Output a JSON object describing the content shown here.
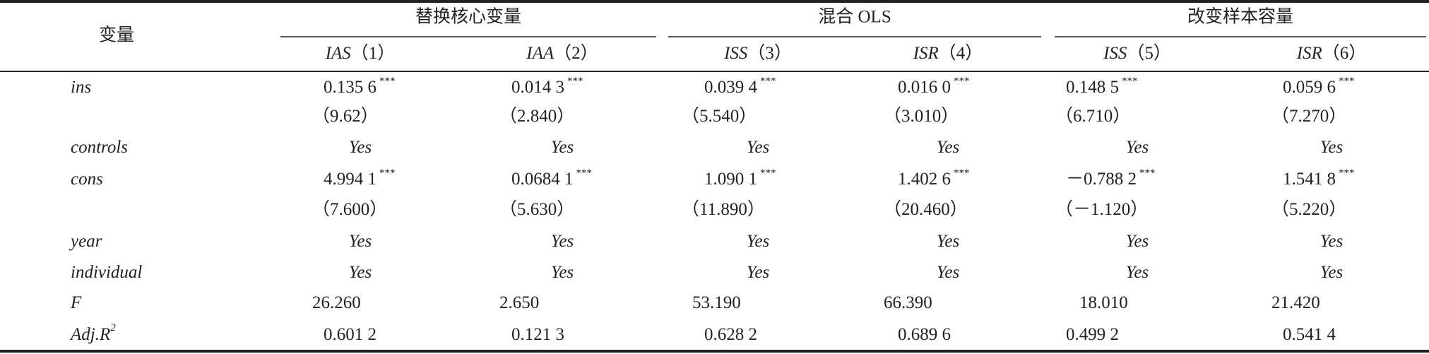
{
  "header": {
    "row_label": "变量",
    "groups": [
      "替换核心变量",
      "混合 OLS",
      "改变样本容量"
    ],
    "columns": [
      {
        "var": "IAS",
        "num": "（1）"
      },
      {
        "var": "IAA",
        "num": "（2）"
      },
      {
        "var": "ISS",
        "num": "（3）"
      },
      {
        "var": "ISR",
        "num": "（4）"
      },
      {
        "var": "ISS",
        "num": "（5）"
      },
      {
        "var": "ISR",
        "num": "（6）"
      }
    ]
  },
  "rows": [
    {
      "label": {
        "text": "ins"
      },
      "cells": [
        {
          "text": "0.135 6",
          "stars": "***"
        },
        {
          "text": "0.014 3",
          "stars": "***"
        },
        {
          "text": "0.039 4",
          "stars": "***"
        },
        {
          "text": "0.016 0",
          "stars": "***"
        },
        {
          "text": "0.148 5",
          "stars": "***"
        },
        {
          "text": "0.059 6",
          "stars": "***"
        }
      ]
    },
    {
      "cells": [
        {
          "text": "（9.62）"
        },
        {
          "text": "（2.840）"
        },
        {
          "text": "（5.540）"
        },
        {
          "text": "（3.010）"
        },
        {
          "text": "（6.710）"
        },
        {
          "text": "（7.270）"
        }
      ]
    },
    {
      "label": {
        "text": "controls"
      },
      "cells": [
        {
          "text": "Yes"
        },
        {
          "text": "Yes"
        },
        {
          "text": "Yes"
        },
        {
          "text": "Yes"
        },
        {
          "text": "Yes"
        },
        {
          "text": "Yes"
        }
      ]
    },
    {
      "label": {
        "text": "cons"
      },
      "cells": [
        {
          "text": "4.994 1",
          "stars": "***"
        },
        {
          "text": "0.0684 1",
          "stars": "***"
        },
        {
          "text": "1.090 1",
          "stars": "***"
        },
        {
          "text": "1.402 6",
          "stars": "***"
        },
        {
          "text": "－0.788 2",
          "stars": "***"
        },
        {
          "text": "1.541 8",
          "stars": "***"
        }
      ]
    },
    {
      "cells": [
        {
          "text": "（7.600）"
        },
        {
          "text": "（5.630）"
        },
        {
          "text": "（11.890）"
        },
        {
          "text": "（20.460）"
        },
        {
          "text": "（－1.120）"
        },
        {
          "text": "（5.220）"
        }
      ]
    },
    {
      "label": {
        "text": "year"
      },
      "cells": [
        {
          "text": "Yes"
        },
        {
          "text": "Yes"
        },
        {
          "text": "Yes"
        },
        {
          "text": "Yes"
        },
        {
          "text": "Yes"
        },
        {
          "text": "Yes"
        }
      ]
    },
    {
      "label": {
        "text": "individual"
      },
      "cells": [
        {
          "text": "Yes"
        },
        {
          "text": "Yes"
        },
        {
          "text": "Yes"
        },
        {
          "text": "Yes"
        },
        {
          "text": "Yes"
        },
        {
          "text": "Yes"
        }
      ]
    },
    {
      "label": {
        "text": "F"
      },
      "cells": [
        {
          "text": "26.260"
        },
        {
          "text": "2.650"
        },
        {
          "text": "53.190"
        },
        {
          "text": "66.390"
        },
        {
          "text": "18.010"
        },
        {
          "text": "21.420"
        }
      ]
    },
    {
      "label": {
        "text": "Adj.R",
        "sup": "2"
      },
      "cells": [
        {
          "text": "0.601 2"
        },
        {
          "text": "0.121 3"
        },
        {
          "text": "0.628 2"
        },
        {
          "text": "0.689 6"
        },
        {
          "text": "0.499 2"
        },
        {
          "text": "0.541 4"
        }
      ]
    }
  ]
}
